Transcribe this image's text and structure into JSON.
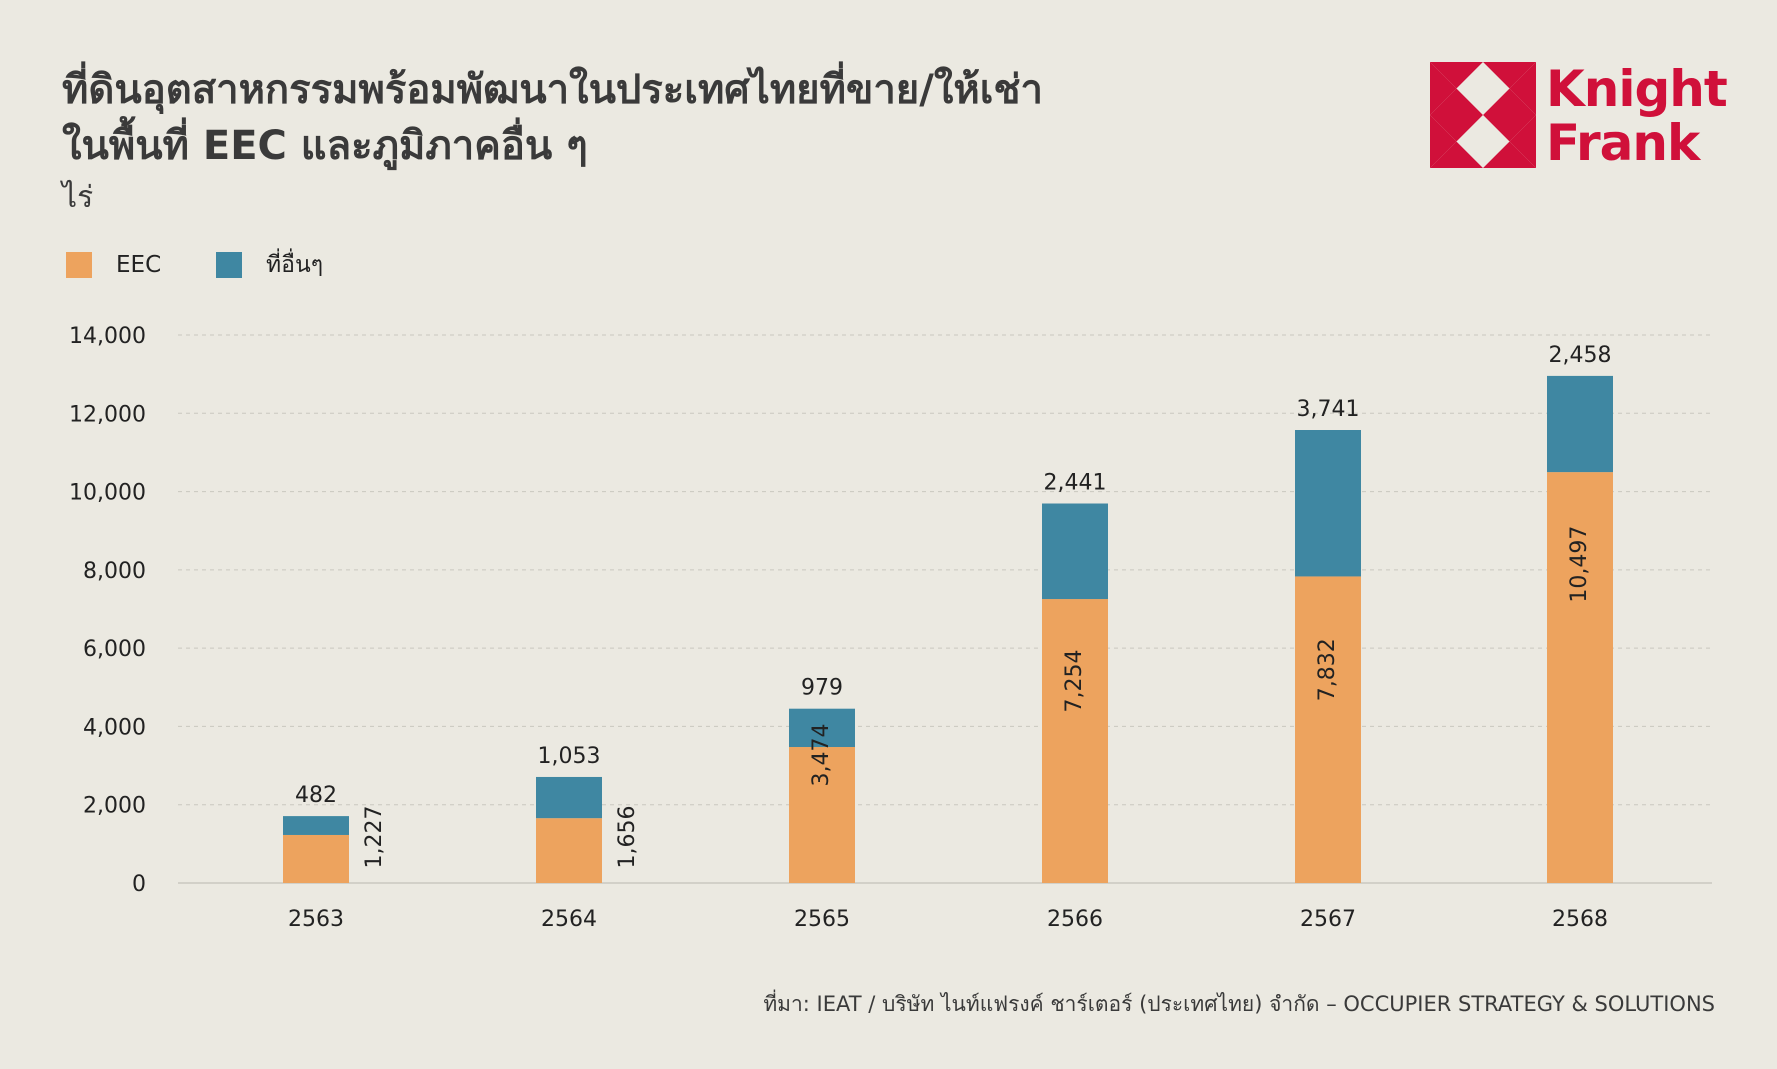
{
  "title_line1": "ที่ดินอุตสาหกรรมพร้อมพัฒนาในประเทศไทยที่ขาย/ให้เช่า",
  "title_line2": "ในพื้นที่ EEC และภูมิภาคอื่น ๆ",
  "unit": "ไร่",
  "logo": {
    "line1": "Knight",
    "line2": "Frank",
    "color": "#d0103a"
  },
  "source": "ที่มา: IEAT / บริษัท ไนท์แฟรงค์ ชาร์เตอร์ (ประเทศไทย) จำกัด – OCCUPIER STRATEGY & SOLUTIONS",
  "colors": {
    "background": "#ebe9e1",
    "eec": "#eda35e",
    "other": "#3f87a2",
    "grid": "#c9c7bf",
    "text": "#222222"
  },
  "chart_data": {
    "type": "bar",
    "stacked": true,
    "categories": [
      "2563",
      "2564",
      "2565",
      "2566",
      "2567",
      "2568"
    ],
    "series": [
      {
        "name": "EEC",
        "values": [
          1227,
          1656,
          3474,
          7254,
          7832,
          10497
        ]
      },
      {
        "name": "ที่อื่นๆ",
        "values": [
          482,
          1053,
          979,
          2441,
          3741,
          2458
        ]
      }
    ],
    "value_labels": {
      "EEC": [
        "1,227",
        "1,656",
        "3,474",
        "7,254",
        "7,832",
        "10,497"
      ],
      "ที่อื่นๆ": [
        "482",
        "1,053",
        "979",
        "2,441",
        "3,741",
        "2,458"
      ]
    },
    "y_ticks": [
      0,
      2000,
      4000,
      6000,
      8000,
      10000,
      12000,
      14000
    ],
    "y_tick_labels": [
      "0",
      "2,000",
      "4,000",
      "6,000",
      "8,000",
      "10,000",
      "12,000",
      "14,000"
    ],
    "ylim": [
      0,
      14000
    ],
    "grid": true,
    "legend_placement": "top-left",
    "xlabel": "",
    "ylabel": "ไร่"
  }
}
